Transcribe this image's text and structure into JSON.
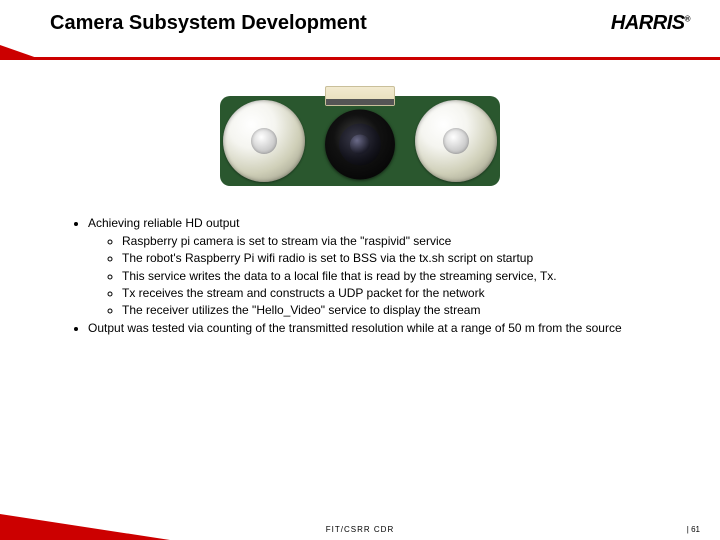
{
  "header": {
    "title": "Camera Subsystem Development",
    "logo_text": "HARRIS"
  },
  "bullets": {
    "b1": "Achieving reliable HD output",
    "b1_1": "Raspberry pi camera is set to stream via the \"raspivid\" service",
    "b1_2": "The robot's Raspberry Pi wifi radio is set to BSS via the tx.sh script on startup",
    "b1_3": "This service writes the data to a local file that is read by the streaming service, Tx.",
    "b1_4": "Tx receives the stream and constructs a UDP packet for the network",
    "b1_5": "The receiver utilizes the \"Hello_Video\" service to display the stream",
    "b2": "Output was tested via counting of the transmitted resolution while at a range of 50 m from the source"
  },
  "footer": {
    "center": "FIT/CSRR CDR",
    "page": "| 61"
  },
  "colors": {
    "accent": "#cc0000",
    "pcb": "#2a572e"
  }
}
